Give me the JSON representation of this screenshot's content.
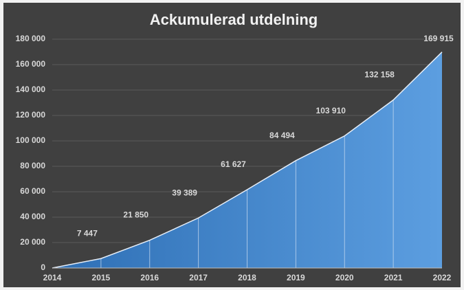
{
  "chart_data": {
    "type": "area",
    "title": "Ackumulerad utdelning",
    "categories": [
      "2014",
      "2015",
      "2016",
      "2017",
      "2018",
      "2019",
      "2020",
      "2021",
      "2022"
    ],
    "values": [
      0,
      7447,
      21850,
      39389,
      61627,
      84494,
      103910,
      132158,
      169915
    ],
    "value_labels": [
      null,
      "7 447",
      "21 850",
      "39 389",
      "61 627",
      "84 494",
      "103 910",
      "132 158",
      "169 915"
    ],
    "color": "#4f8fd3",
    "ylim": [
      0,
      180000
    ],
    "yticks": [
      0,
      {
        "value": 20000,
        "label": "20 000"
      },
      {
        "value": 40000,
        "label": "40 000"
      },
      {
        "value": 60000,
        "label": "60 000"
      },
      {
        "value": 80000,
        "label": "80 000"
      },
      {
        "value": 100000,
        "label": "100 000"
      },
      {
        "value": 120000,
        "label": "120 000"
      },
      {
        "value": 140000,
        "label": "140 000"
      },
      {
        "value": 160000,
        "label": "160 000"
      },
      {
        "value": 180000,
        "label": "180 000"
      }
    ],
    "grid": true
  }
}
